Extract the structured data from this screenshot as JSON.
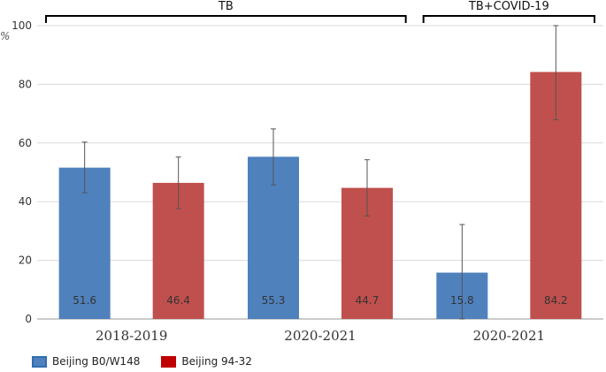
{
  "chart_data": {
    "type": "bar",
    "ylabel": "%",
    "ylim": [
      0,
      100
    ],
    "yticks": [
      0,
      20,
      40,
      60,
      80,
      100
    ],
    "grid": true,
    "groups": [
      {
        "label": "TB",
        "categories": [
          "2018-2019",
          "2020-2021"
        ]
      },
      {
        "label": "TB+COVID-19",
        "categories": [
          "2020-2021"
        ]
      }
    ],
    "categories": [
      "2018-2019",
      "2020-2021",
      "2020-2021"
    ],
    "series": [
      {
        "name": "Beijing B0/W148",
        "color": "#4F81BD",
        "values": [
          51.6,
          55.3,
          15.8
        ],
        "error_low": [
          43,
          45.7,
          0
        ],
        "error_high": [
          60.3,
          64.8,
          32.2
        ]
      },
      {
        "name": "Beijing 94-32",
        "color": "#C0504D",
        "values": [
          46.4,
          44.7,
          84.2
        ],
        "error_low": [
          37.6,
          35.1,
          67.9
        ],
        "error_high": [
          55.2,
          54.3,
          100
        ]
      }
    ],
    "legend_position": "bottom-left"
  }
}
